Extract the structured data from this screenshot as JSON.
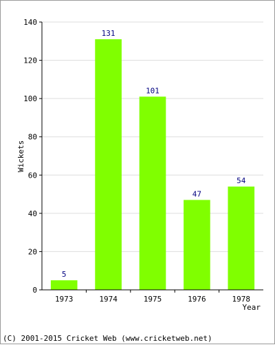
{
  "chart_data": {
    "type": "bar",
    "categories": [
      "1973",
      "1974",
      "1975",
      "1976",
      "1978"
    ],
    "values": [
      5,
      131,
      101,
      47,
      54
    ],
    "xlabel": "Year",
    "ylabel": "Wickets",
    "ylim": [
      0,
      140
    ],
    "yticks": [
      0,
      20,
      40,
      60,
      80,
      100,
      120,
      140
    ],
    "grid": true,
    "bar_color": "#80ff00",
    "label_color": "#000080"
  },
  "footer": "(C) 2001-2015 Cricket Web (www.cricketweb.net)"
}
